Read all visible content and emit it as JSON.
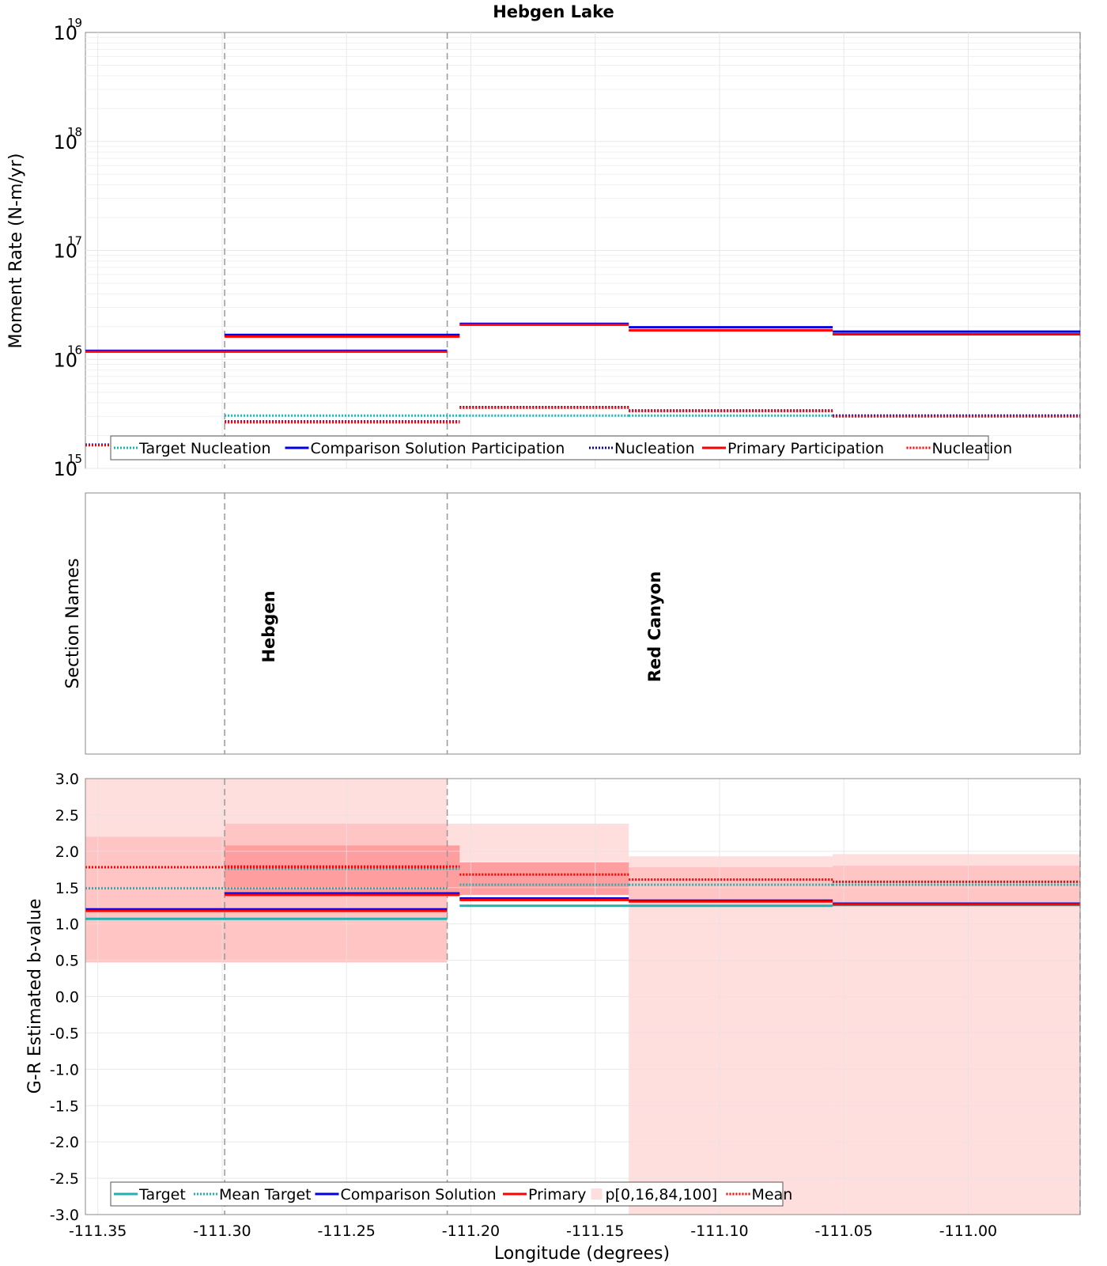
{
  "chart_data": [
    {
      "type": "line",
      "panel": "moment-rate",
      "title": "Hebgen Lake",
      "ylabel": "Moment Rate (N-m/yr)",
      "yscale": "log",
      "ylim": [
        1000000000000000.0,
        1e+19
      ],
      "y_ticks": [
        {
          "base": "10",
          "exp": "15",
          "value": 1000000000000000.0
        },
        {
          "base": "10",
          "exp": "16",
          "value": 1e+16
        },
        {
          "base": "10",
          "exp": "17",
          "value": 1e+17
        },
        {
          "base": "10",
          "exp": "18",
          "value": 1e+18
        },
        {
          "base": "10",
          "exp": "19",
          "value": 1e+19
        }
      ],
      "xlim": [
        -111.355,
        -110.955
      ],
      "section_boundaries": [
        -111.299,
        -111.2095
      ],
      "legend": [
        "Target Nucleation",
        "Comparison Solution Participation",
        "Nucleation",
        "Primary Participation",
        "Nucleation"
      ],
      "series": [
        {
          "name": "Target Nucleation",
          "color": "#20b2b2",
          "style": "dotted",
          "segments": [
            [
              -111.355,
              -111.299,
              1650000000000000.0
            ],
            [
              -111.299,
              -111.2045,
              3050000000000000.0
            ],
            [
              -111.2045,
              -111.1365,
              3050000000000000.0
            ],
            [
              -111.1365,
              -111.0545,
              3050000000000000.0
            ],
            [
              -111.0545,
              -110.955,
              3050000000000000.0
            ]
          ]
        },
        {
          "name": "Comparison Solution Participation",
          "color": "#0000e0",
          "style": "solid",
          "segments": [
            [
              -111.355,
              -111.2095,
              1.2e+16
            ],
            [
              -111.299,
              -111.2045,
              1.68e+16
            ],
            [
              -111.2045,
              -111.1365,
              2.12e+16
            ],
            [
              -111.1365,
              -111.0545,
              1.97e+16
            ],
            [
              -111.0545,
              -110.955,
              1.8e+16
            ]
          ]
        },
        {
          "name": "Nucleation",
          "color": "#0000e0",
          "style": "dotted",
          "segments": [
            [
              -111.355,
              -111.299,
              1650000000000000.0
            ],
            [
              -111.299,
              -111.2045,
              2700000000000000.0
            ],
            [
              -111.2045,
              -111.1365,
              3650000000000000.0
            ],
            [
              -111.1365,
              -111.0545,
              3400000000000000.0
            ],
            [
              -111.0545,
              -110.955,
              3050000000000000.0
            ]
          ]
        },
        {
          "name": "Primary Participation",
          "color": "#ff0000",
          "style": "solid",
          "segments": [
            [
              -111.355,
              -111.2095,
              1.18e+16
            ],
            [
              -111.299,
              -111.2045,
              1.62e+16
            ],
            [
              -111.2045,
              -111.1365,
              2.08e+16
            ],
            [
              -111.1365,
              -111.0545,
              1.85e+16
            ],
            [
              -111.0545,
              -110.955,
              1.7e+16
            ]
          ]
        },
        {
          "name": "Nucleation",
          "color": "#ff0000",
          "style": "dotted",
          "segments": [
            [
              -111.355,
              -111.299,
              1630000000000000.0
            ],
            [
              -111.299,
              -111.2045,
              2650000000000000.0
            ],
            [
              -111.2045,
              -111.1365,
              3600000000000000.0
            ],
            [
              -111.1365,
              -111.0545,
              3350000000000000.0
            ],
            [
              -111.0545,
              -110.955,
              3000000000000000.0
            ]
          ]
        }
      ]
    },
    {
      "type": "table",
      "panel": "section-names",
      "ylabel": "Section Names",
      "sections": [
        {
          "name": "Hebgen",
          "x": -111.2835
        },
        {
          "name": "Red Canyon",
          "x": -111.1285
        }
      ]
    },
    {
      "type": "line",
      "panel": "b-value",
      "xlabel": "Longitude (degrees)",
      "ylabel": "G-R Estimated b-value",
      "ylim": [
        -3.0,
        3.0
      ],
      "y_ticks": [
        "3.0",
        "2.5",
        "2.0",
        "1.5",
        "1.0",
        "0.5",
        "0.0",
        "-0.5",
        "-1.0",
        "-1.5",
        "-2.0",
        "-2.5",
        "-3.0"
      ],
      "x_ticks": [
        "-111.35",
        "-111.30",
        "-111.25",
        "-111.20",
        "-111.15",
        "-111.10",
        "-111.05",
        "-111.00"
      ],
      "legend": [
        "Target",
        "Mean Target",
        "Comparison Solution",
        "Primary",
        "p[0,16,84,100]",
        "Mean"
      ],
      "bands_outer": [
        [
          -111.355,
          -111.2095,
          0.47,
          3.0
        ],
        [
          -111.2095,
          -111.1365,
          1.86,
          2.38
        ],
        [
          -111.1365,
          -111.0545,
          -3.0,
          1.93
        ],
        [
          -111.0545,
          -110.955,
          -3.0,
          1.96
        ]
      ],
      "bands_inner": [
        [
          -111.355,
          -111.299,
          0.47,
          2.2
        ],
        [
          -111.299,
          -111.2095,
          0.47,
          2.38
        ],
        [
          -111.1365,
          -111.0545,
          1.3,
          1.78
        ],
        [
          -111.0545,
          -110.955,
          1.3,
          1.8
        ]
      ],
      "bands_core": [
        [
          -111.299,
          -111.2045,
          1.38,
          2.08
        ],
        [
          -111.2045,
          -111.1365,
          1.4,
          1.85
        ]
      ],
      "series": [
        {
          "name": "Target",
          "color": "#20b2b2",
          "style": "solid",
          "segments": [
            [
              -111.355,
              -111.2095,
              1.07
            ],
            [
              -111.2045,
              -111.1365,
              1.25
            ],
            [
              -111.1365,
              -111.0545,
              1.25
            ],
            [
              -111.0545,
              -110.955,
              1.26
            ]
          ]
        },
        {
          "name": "Mean Target",
          "color": "#20b2b2",
          "style": "dotted",
          "segments": [
            [
              -111.355,
              -111.2095,
              1.49
            ],
            [
              -111.299,
              -111.2045,
              1.76
            ],
            [
              -111.2045,
              -111.1365,
              1.54
            ],
            [
              -111.1365,
              -111.0545,
              1.54
            ],
            [
              -111.0545,
              -110.955,
              1.54
            ]
          ]
        },
        {
          "name": "Comparison Solution",
          "color": "#0000e0",
          "style": "solid",
          "segments": [
            [
              -111.355,
              -111.2095,
              1.2
            ],
            [
              -111.299,
              -111.2045,
              1.42
            ],
            [
              -111.2045,
              -111.1365,
              1.35
            ],
            [
              -111.1365,
              -111.0545,
              1.32
            ],
            [
              -111.0545,
              -110.955,
              1.28
            ]
          ]
        },
        {
          "name": "Primary",
          "color": "#ff0000",
          "style": "solid",
          "segments": [
            [
              -111.355,
              -111.2095,
              1.18
            ],
            [
              -111.299,
              -111.2045,
              1.4
            ],
            [
              -111.2045,
              -111.1365,
              1.33
            ],
            [
              -111.1365,
              -111.0545,
              1.31
            ],
            [
              -111.0545,
              -110.955,
              1.27
            ]
          ]
        },
        {
          "name": "Mean",
          "color": "#ff0000",
          "style": "dotted",
          "segments": [
            [
              -111.355,
              -111.2095,
              1.78
            ],
            [
              -111.299,
              -111.2045,
              1.79
            ],
            [
              -111.2045,
              -111.1365,
              1.68
            ],
            [
              -111.1365,
              -111.0545,
              1.61
            ],
            [
              -111.0545,
              -110.955,
              1.58
            ]
          ]
        }
      ]
    }
  ],
  "colors": {
    "band_outer": "#ffdede",
    "band_inner": "#ffc4c4",
    "band_core": "#ff9e9e",
    "grid": "#e8e8e8",
    "boundary": "#999999"
  }
}
